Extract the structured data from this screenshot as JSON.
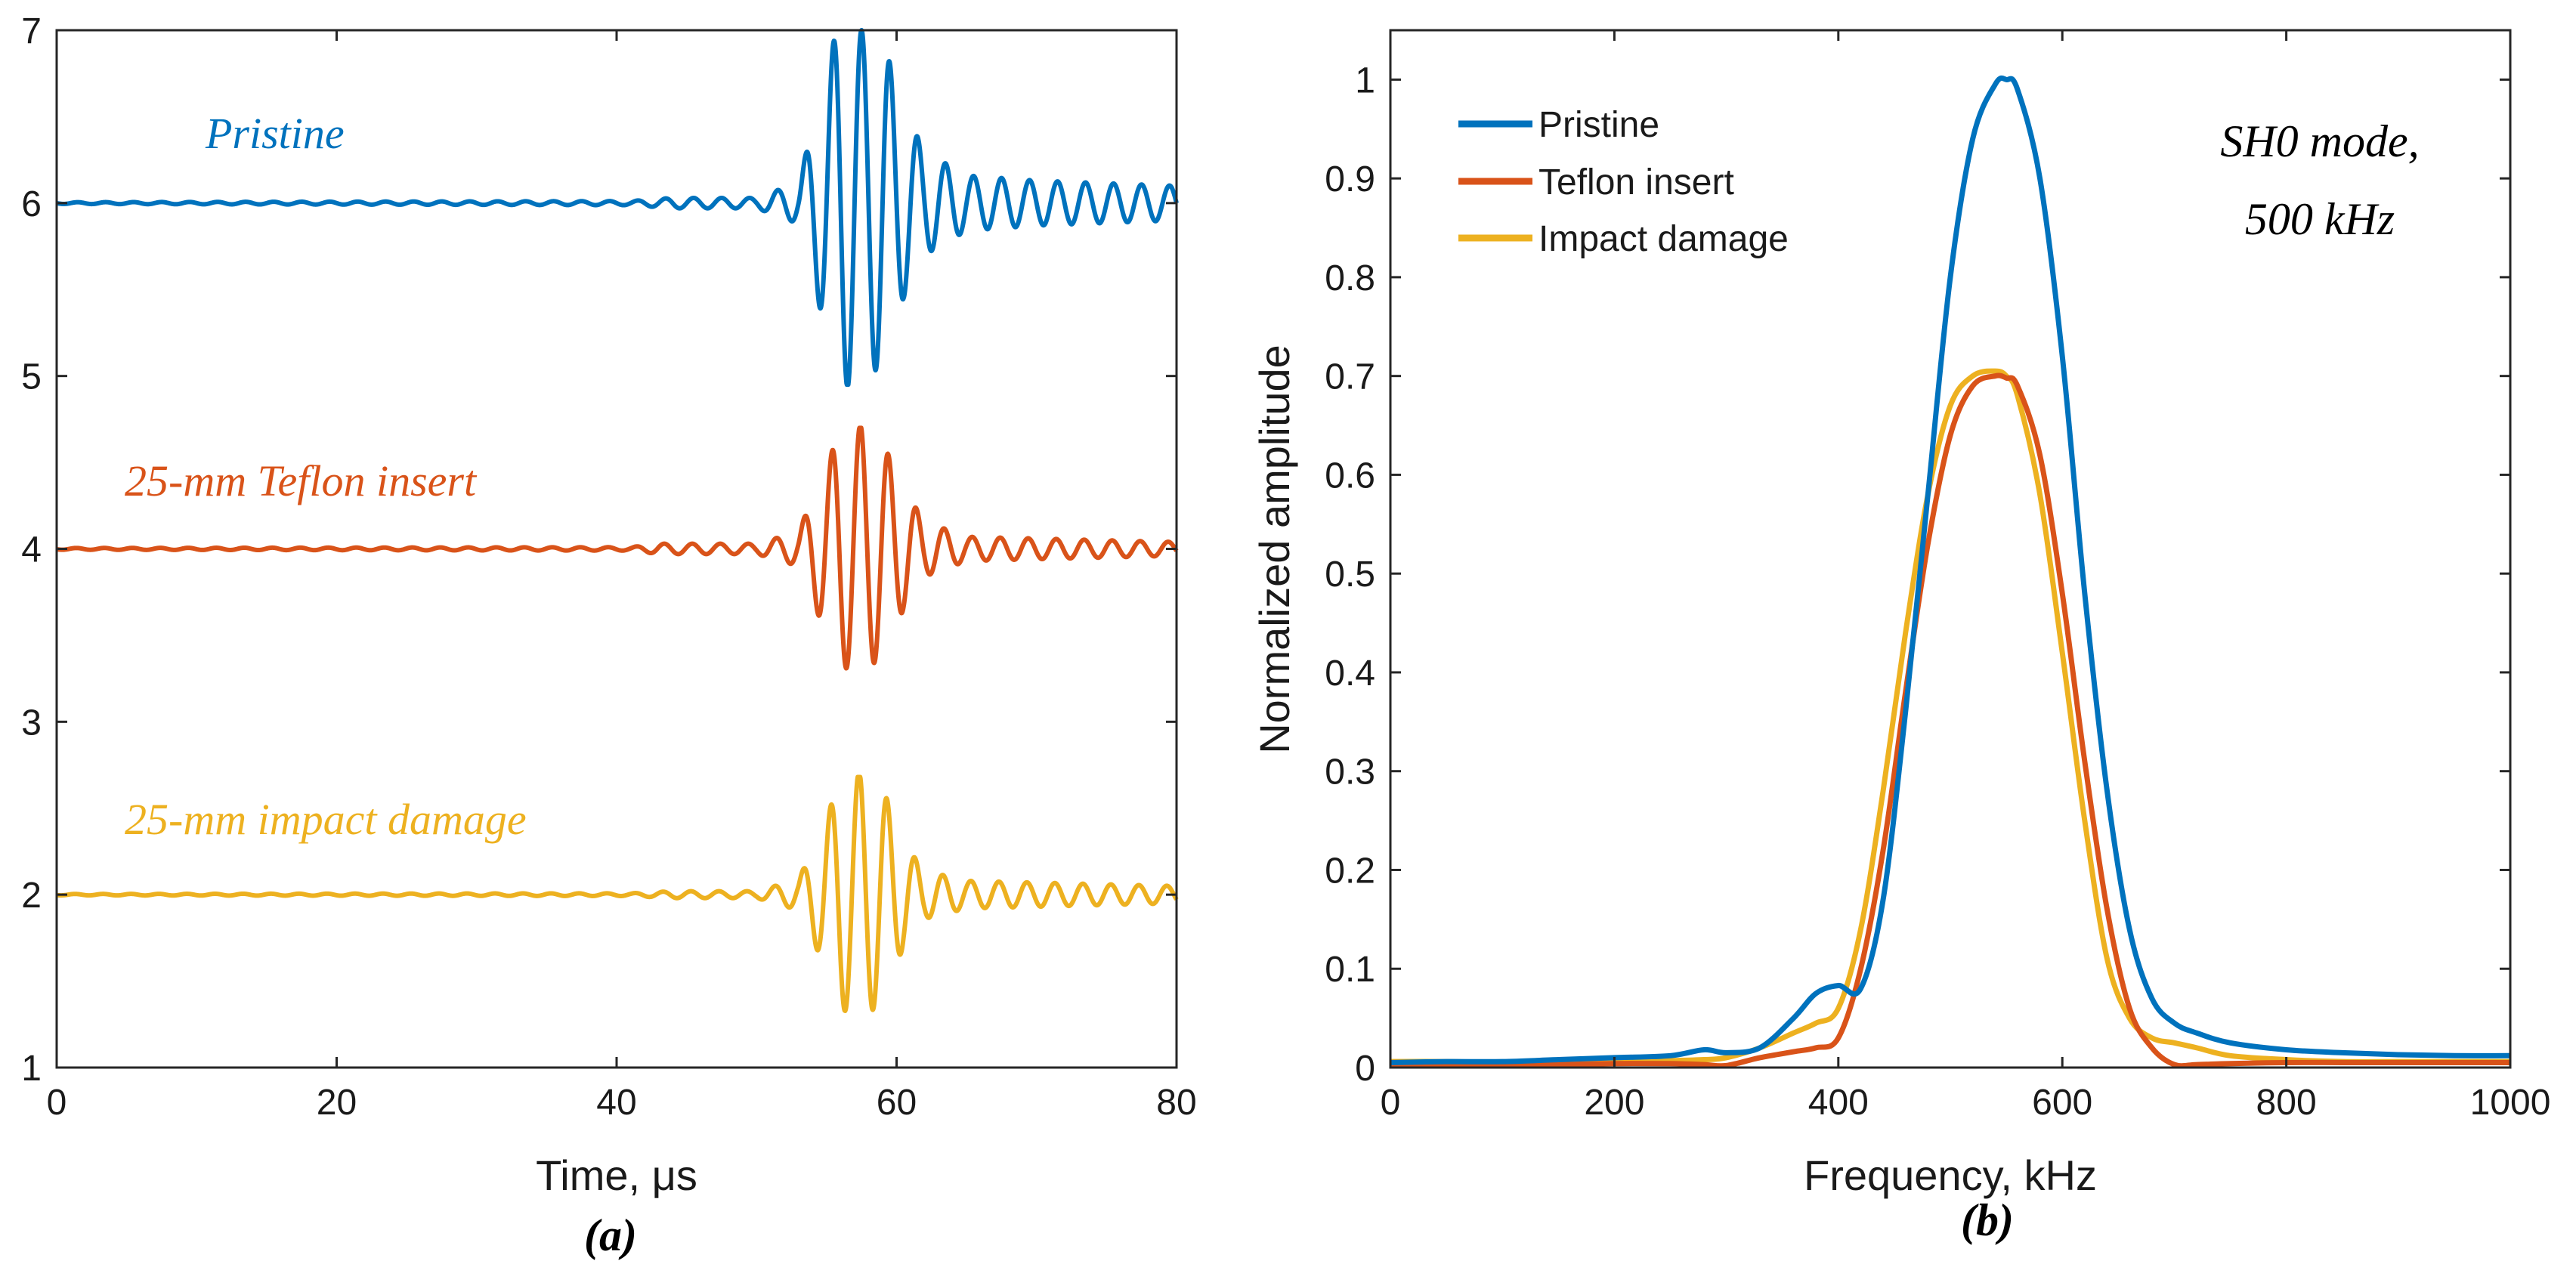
{
  "chart_data": [
    {
      "type": "line",
      "caption": "(a)",
      "xlabel": "Time, μs",
      "ylabel": "",
      "xlim": [
        0,
        80
      ],
      "ylim": [
        1,
        7
      ],
      "xticks": [
        "0",
        "20",
        "40",
        "60",
        "80"
      ],
      "yticks": [
        "1",
        "2",
        "3",
        "4",
        "5",
        "6",
        "7"
      ],
      "grid": false,
      "series": [
        {
          "name": "Pristine",
          "label": "Pristine",
          "color": "#0072BD",
          "baseline": 6,
          "envelope": [
            {
              "t": 0,
              "a": 0.005
            },
            {
              "t": 41,
              "a": 0.012
            },
            {
              "t": 44,
              "a": 0.03
            },
            {
              "t": 50,
              "a": 0.03
            },
            {
              "t": 53,
              "a": 0.12
            },
            {
              "t": 54.5,
              "a": 0.6
            },
            {
              "t": 56,
              "a": 1.1
            },
            {
              "t": 57.5,
              "a": 1.0
            },
            {
              "t": 59,
              "a": 0.95
            },
            {
              "t": 60.5,
              "a": 0.55
            },
            {
              "t": 62,
              "a": 0.3
            },
            {
              "t": 65,
              "a": 0.16
            },
            {
              "t": 70,
              "a": 0.13
            },
            {
              "t": 80,
              "a": 0.1
            }
          ],
          "peak_max": 7.0,
          "peak_min": 4.95
        },
        {
          "name": "25-mm Teflon insert",
          "label": "25-mm Teflon insert",
          "color": "#D95319",
          "baseline": 4,
          "envelope": [
            {
              "t": 0,
              "a": 0.005
            },
            {
              "t": 41,
              "a": 0.01
            },
            {
              "t": 43,
              "a": 0.03
            },
            {
              "t": 50,
              "a": 0.03
            },
            {
              "t": 53,
              "a": 0.1
            },
            {
              "t": 54.5,
              "a": 0.4
            },
            {
              "t": 56,
              "a": 0.68
            },
            {
              "t": 57.5,
              "a": 0.72
            },
            {
              "t": 59,
              "a": 0.62
            },
            {
              "t": 60.5,
              "a": 0.35
            },
            {
              "t": 62,
              "a": 0.16
            },
            {
              "t": 65,
              "a": 0.07
            },
            {
              "t": 80,
              "a": 0.04
            }
          ],
          "peak_max": 4.7,
          "peak_min": 3.28
        },
        {
          "name": "25-mm impact damage",
          "label": "25-mm impact damage",
          "color": "#EDB120",
          "baseline": 2,
          "envelope": [
            {
              "t": 0,
              "a": 0.004
            },
            {
              "t": 41,
              "a": 0.008
            },
            {
              "t": 44,
              "a": 0.02
            },
            {
              "t": 50,
              "a": 0.02
            },
            {
              "t": 53,
              "a": 0.09
            },
            {
              "t": 54.5,
              "a": 0.35
            },
            {
              "t": 56,
              "a": 0.66
            },
            {
              "t": 57.5,
              "a": 0.72
            },
            {
              "t": 59,
              "a": 0.62
            },
            {
              "t": 60.5,
              "a": 0.3
            },
            {
              "t": 62,
              "a": 0.14
            },
            {
              "t": 65,
              "a": 0.08
            },
            {
              "t": 80,
              "a": 0.05
            }
          ],
          "peak_max": 2.68,
          "peak_min": 1.28
        }
      ],
      "carrier_period_us": 2.0,
      "wave_center_us": 57.5
    },
    {
      "type": "line",
      "caption": "(b)",
      "xlabel": "Frequency, kHz",
      "ylabel": "Normalized amplitude",
      "xlim": [
        0,
        1000
      ],
      "ylim": [
        0,
        1.05
      ],
      "xticks": [
        "0",
        "200",
        "400",
        "600",
        "800",
        "1000"
      ],
      "yticks": [
        "0",
        "0.1",
        "0.2",
        "0.3",
        "0.4",
        "0.5",
        "0.6",
        "0.7",
        "0.8",
        "0.9",
        "1"
      ],
      "grid": false,
      "legend_position": "top-left",
      "annotation": [
        "SH0 mode,",
        "500 kHz"
      ],
      "x": [
        0,
        50,
        100,
        150,
        200,
        250,
        280,
        300,
        330,
        360,
        380,
        400,
        420,
        440,
        460,
        480,
        500,
        520,
        540,
        550,
        560,
        580,
        600,
        620,
        640,
        660,
        680,
        700,
        720,
        750,
        800,
        850,
        900,
        950,
        1000
      ],
      "series": [
        {
          "name": "Pristine",
          "color": "#0072BD",
          "values": [
            0.005,
            0.006,
            0.006,
            0.008,
            0.01,
            0.012,
            0.018,
            0.015,
            0.02,
            0.05,
            0.075,
            0.083,
            0.08,
            0.17,
            0.36,
            0.58,
            0.8,
            0.94,
            0.995,
            1.0,
            0.99,
            0.9,
            0.72,
            0.48,
            0.28,
            0.14,
            0.07,
            0.045,
            0.035,
            0.025,
            0.018,
            0.015,
            0.013,
            0.012,
            0.012
          ]
        },
        {
          "name": "Teflon insert",
          "color": "#D95319",
          "values": [
            0.002,
            0.002,
            0.003,
            0.003,
            0.004,
            0.004,
            0.003,
            0.002,
            0.01,
            0.016,
            0.02,
            0.03,
            0.1,
            0.22,
            0.38,
            0.53,
            0.64,
            0.69,
            0.7,
            0.698,
            0.69,
            0.62,
            0.48,
            0.31,
            0.16,
            0.06,
            0.02,
            0.003,
            0.003,
            0.004,
            0.005,
            0.005,
            0.005,
            0.005,
            0.005
          ]
        },
        {
          "name": "Impact damage",
          "color": "#EDB120",
          "values": [
            0.006,
            0.006,
            0.005,
            0.005,
            0.006,
            0.007,
            0.008,
            0.01,
            0.02,
            0.035,
            0.045,
            0.06,
            0.14,
            0.28,
            0.44,
            0.58,
            0.67,
            0.7,
            0.705,
            0.7,
            0.68,
            0.58,
            0.42,
            0.25,
            0.11,
            0.05,
            0.03,
            0.025,
            0.02,
            0.012,
            0.008,
            0.006,
            0.006,
            0.006,
            0.006
          ]
        }
      ]
    }
  ]
}
